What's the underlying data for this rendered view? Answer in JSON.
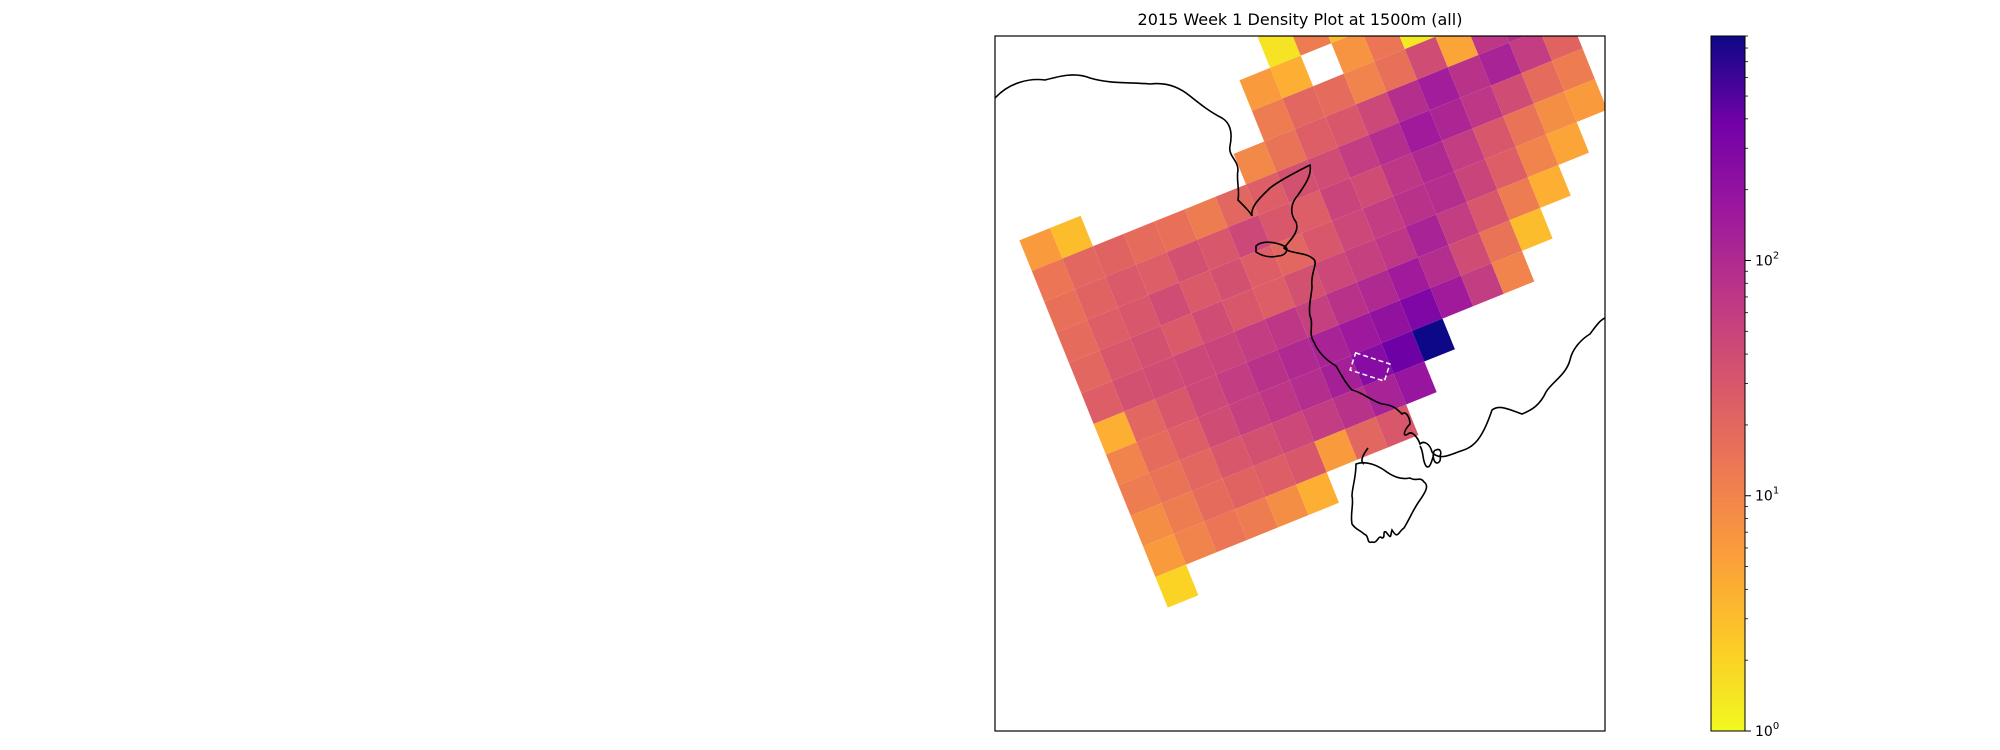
{
  "chart_data": {
    "type": "heatmap",
    "title": "2015 Week 1 Density Plot at 1500m (all)",
    "xlabel": "",
    "ylabel": "",
    "colorbar": {
      "scale": "log",
      "range": [
        1,
        900
      ],
      "colormap": "plasma",
      "ticks": [
        {
          "value": 1,
          "base": "10",
          "exp": "0"
        },
        {
          "value": 10,
          "base": "10",
          "exp": "1"
        },
        {
          "value": 100,
          "base": "10",
          "exp": "2"
        }
      ]
    },
    "grid": false,
    "colors": {
      "frame": "#000000",
      "coast": "#000000",
      "highlight_box": "#ffffff",
      "missing": "#ffffff"
    },
    "grid_rows": [
      {
        "row": 0,
        "values": [
          0,
          0,
          0,
          0,
          0,
          0,
          0,
          0,
          0,
          0,
          18,
          6,
          0,
          0,
          0,
          0,
          0,
          0
        ]
      },
      {
        "row": 1,
        "values": [
          0,
          0,
          0,
          0,
          0,
          0,
          0,
          0,
          0,
          1.5,
          12,
          3,
          8,
          0,
          0,
          0,
          0,
          0
        ]
      },
      {
        "row": 2,
        "values": [
          0,
          0,
          0,
          0,
          0,
          0,
          0,
          0,
          6,
          4,
          0,
          7,
          14,
          1.3,
          9,
          12,
          60,
          30
        ]
      },
      {
        "row": 3,
        "values": [
          0,
          0,
          0,
          0,
          0,
          0,
          0,
          0,
          12,
          20,
          18,
          10,
          16,
          40,
          5,
          70,
          90,
          25
        ]
      },
      {
        "row": 4,
        "values": [
          6,
          3,
          0,
          0,
          0,
          0,
          0,
          9,
          15,
          25,
          30,
          45,
          90,
          140,
          80,
          120,
          60,
          22
        ]
      },
      {
        "row": 5,
        "values": [
          14,
          20,
          22,
          18,
          16,
          12,
          20,
          25,
          35,
          40,
          60,
          90,
          150,
          110,
          70,
          40,
          18,
          12
        ]
      },
      {
        "row": 6,
        "values": [
          16,
          22,
          28,
          25,
          35,
          30,
          45,
          30,
          25,
          50,
          40,
          70,
          100,
          60,
          30,
          15,
          8,
          6
        ]
      },
      {
        "row": 7,
        "values": [
          18,
          25,
          30,
          40,
          28,
          35,
          25,
          20,
          30,
          45,
          60,
          80,
          90,
          50,
          25,
          10,
          5,
          0
        ]
      },
      {
        "row": 8,
        "values": [
          20,
          30,
          35,
          28,
          40,
          30,
          25,
          35,
          45,
          55,
          70,
          120,
          60,
          30,
          12,
          4,
          0,
          0
        ]
      },
      {
        "row": 9,
        "values": [
          25,
          35,
          40,
          45,
          50,
          60,
          70,
          55,
          80,
          100,
          150,
          90,
          40,
          15,
          3,
          0,
          0,
          0
        ]
      },
      {
        "row": 10,
        "values": [
          4,
          20,
          30,
          45,
          60,
          80,
          100,
          120,
          160,
          200,
          300,
          150,
          60,
          10,
          0,
          0,
          0,
          0
        ]
      },
      {
        "row": 11,
        "values": [
          10,
          18,
          25,
          40,
          55,
          70,
          90,
          130,
          250,
          400,
          900,
          0,
          0,
          0,
          0,
          0,
          0,
          0
        ]
      },
      {
        "row": 12,
        "values": [
          12,
          15,
          20,
          30,
          35,
          45,
          60,
          80,
          120,
          180,
          0,
          0,
          0,
          0,
          0,
          0,
          0,
          0
        ]
      },
      {
        "row": 13,
        "values": [
          8,
          12,
          18,
          22,
          25,
          30,
          6,
          20,
          30,
          0,
          0,
          0,
          0,
          0,
          0,
          0,
          0,
          0
        ]
      },
      {
        "row": 14,
        "values": [
          6,
          10,
          14,
          12,
          8,
          4,
          0,
          0,
          0,
          0,
          0,
          0,
          0,
          0,
          0,
          0,
          0,
          0
        ]
      },
      {
        "row": 15,
        "values": [
          2,
          0,
          0,
          0,
          0,
          0,
          0,
          0,
          0,
          0,
          0,
          0,
          0,
          0,
          0,
          0,
          0,
          0
        ]
      }
    ]
  }
}
